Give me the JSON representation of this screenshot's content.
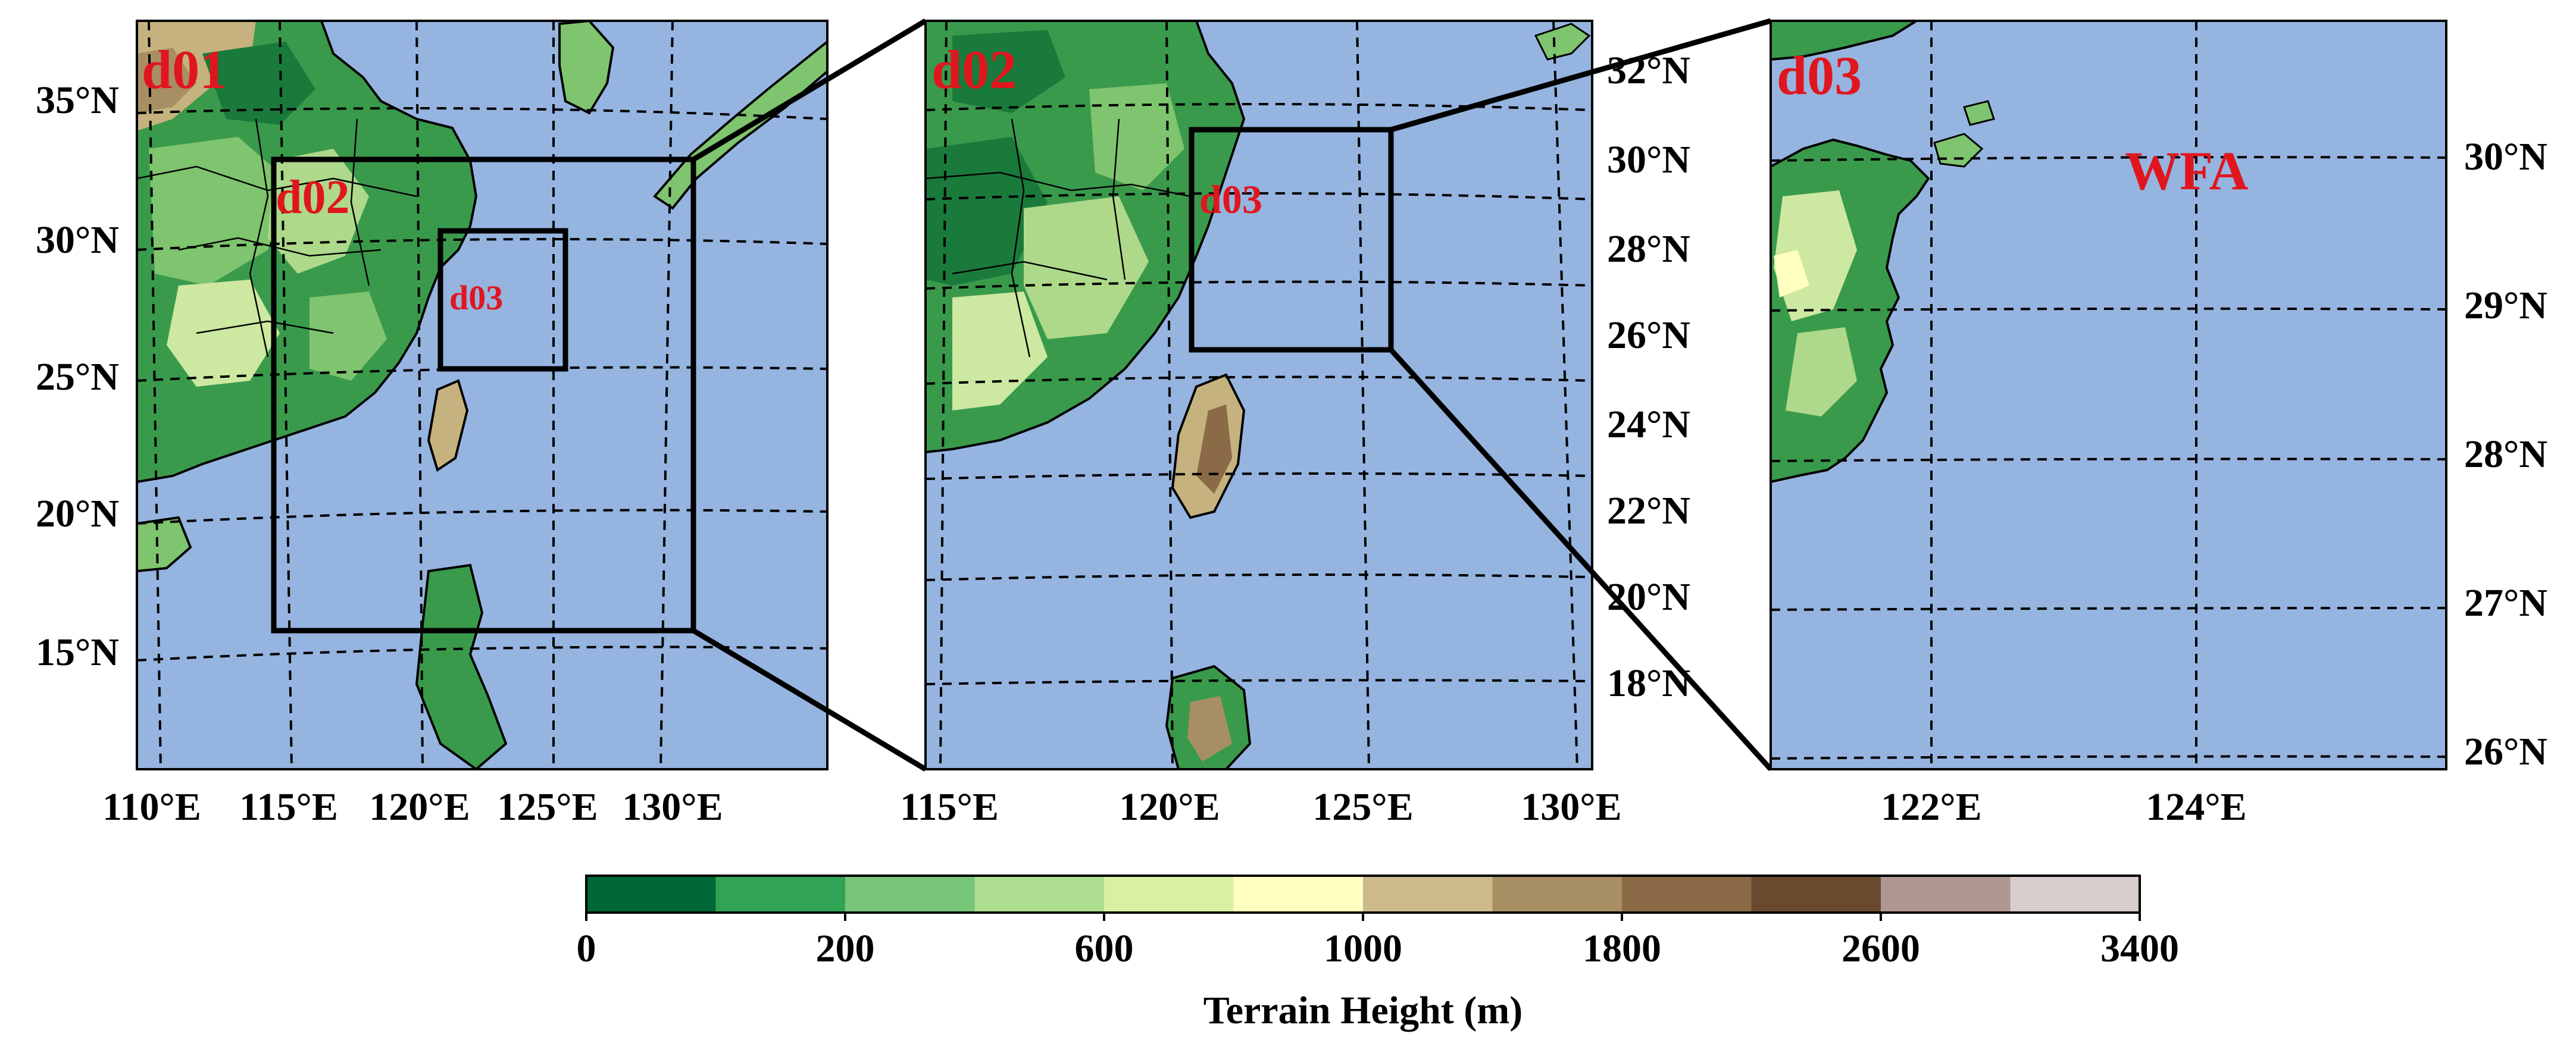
{
  "panels": [
    {
      "domain_label": "d01",
      "lat_labels": [
        "35°N",
        "30°N",
        "25°N",
        "20°N",
        "15°N"
      ],
      "lon_labels": [
        "110°E",
        "115°E",
        "120°E",
        "125°E",
        "130°E"
      ],
      "nested_boxes": [
        {
          "label": "d02"
        },
        {
          "label": "d03"
        }
      ]
    },
    {
      "domain_label": "d02",
      "lat_labels": [
        "32°N",
        "30°N",
        "28°N",
        "26°N",
        "24°N",
        "22°N",
        "20°N",
        "18°N"
      ],
      "lon_labels": [
        "115°E",
        "120°E",
        "125°E",
        "130°E"
      ],
      "nested_boxes": [
        {
          "label": "d03"
        }
      ]
    },
    {
      "domain_label": "d03",
      "lat_labels": [
        "30°N",
        "29°N",
        "28°N",
        "27°N",
        "26°N"
      ],
      "lon_labels": [
        "122°E",
        "124°E"
      ],
      "site_label": "WFA"
    }
  ],
  "colors": {
    "ocean": "#96b4e0",
    "domain_labels": "#e0161e"
  },
  "colorbar": {
    "title": "Terrain Height (m)",
    "tick_labels": [
      "0",
      "200",
      "600",
      "1000",
      "1800",
      "2600",
      "3400"
    ],
    "colors": [
      "#006837",
      "#31a354",
      "#78c679",
      "#addd8e",
      "#d9f0a3",
      "#ffffbf",
      "#cdbb8c",
      "#a88f63",
      "#8a6a47",
      "#6a4a2e",
      "#ae9790",
      "#d7cdca"
    ]
  }
}
